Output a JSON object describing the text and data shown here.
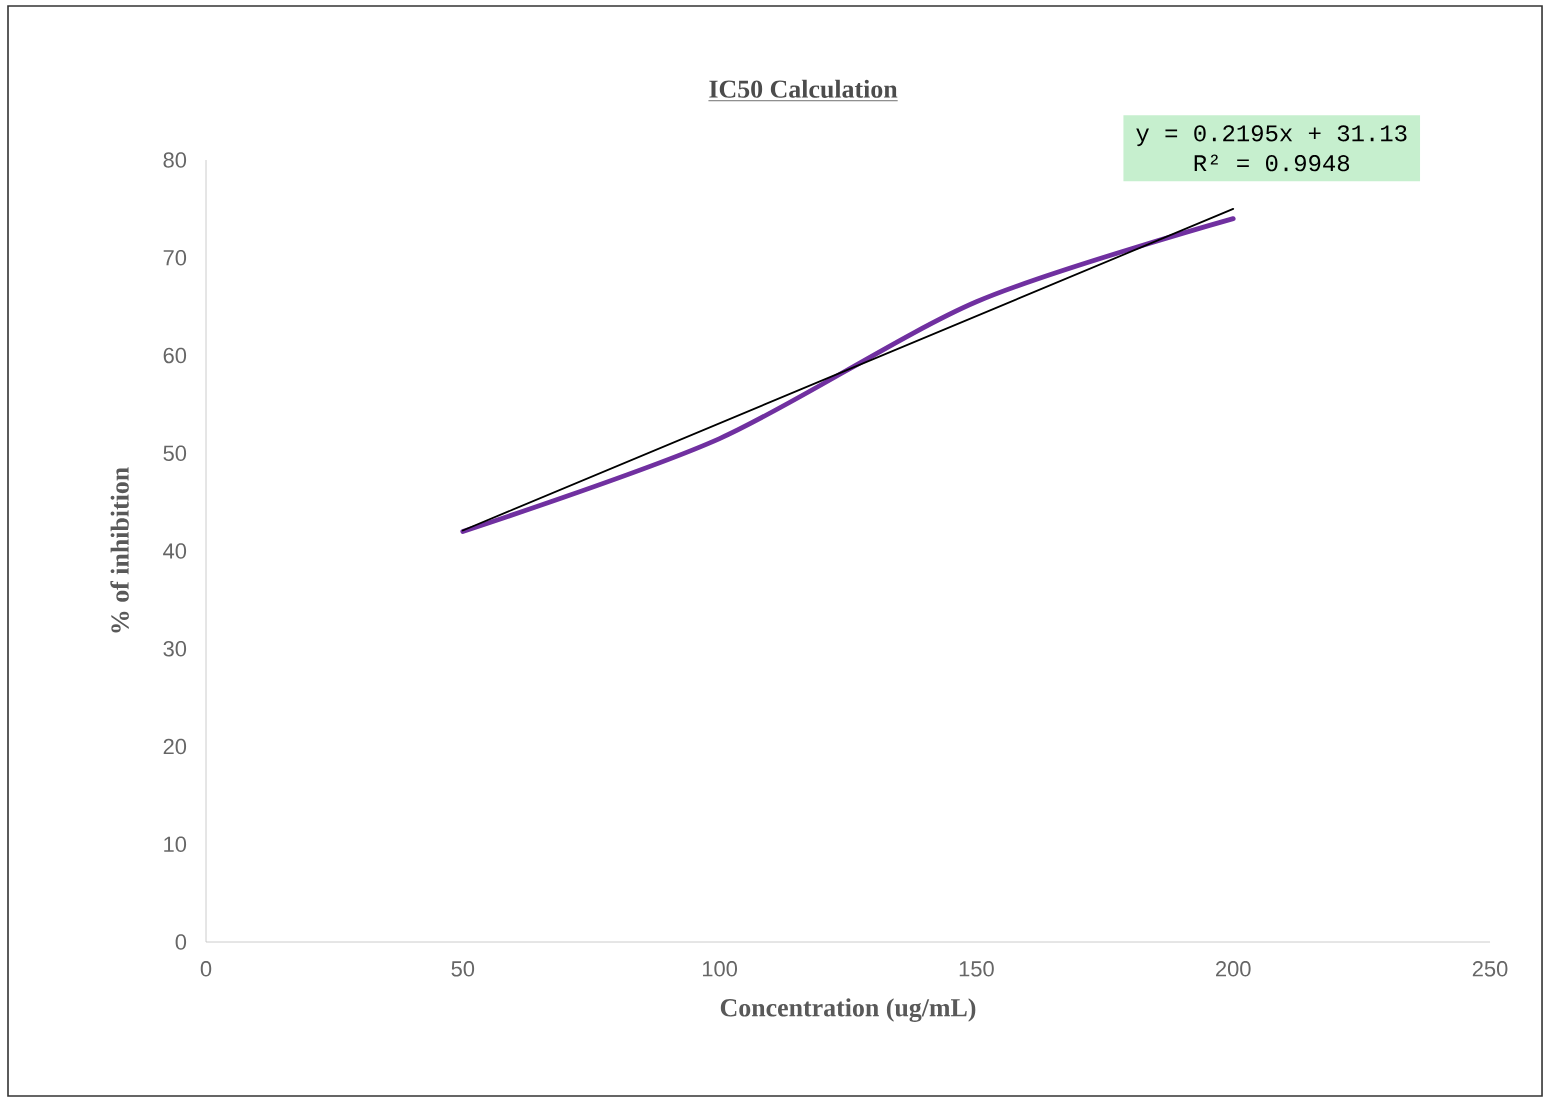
{
  "chart_data": {
    "type": "line",
    "title": "IC50 Calculation",
    "xlabel": "Concentration  (ug/mL)",
    "ylabel": "% of inhibition",
    "x": [
      50,
      100,
      150,
      200
    ],
    "series": [
      {
        "color": "#7030a0",
        "values": [
          42,
          51.5,
          65.5,
          74
        ]
      },
      {
        "type": "line",
        "x": [
          50,
          200
        ],
        "color": "#000000",
        "values": [
          42.1,
          75.0
        ]
      }
    ],
    "annotations": [
      "y = 0.2195x + 31.13",
      "R² = 0.9948"
    ],
    "xlim": [
      0,
      250
    ],
    "ylim": [
      0,
      80
    ],
    "xticks": [
      0,
      50,
      100,
      150,
      200,
      250
    ],
    "yticks": [
      0,
      10,
      20,
      30,
      40,
      50,
      60,
      70,
      80
    ]
  }
}
